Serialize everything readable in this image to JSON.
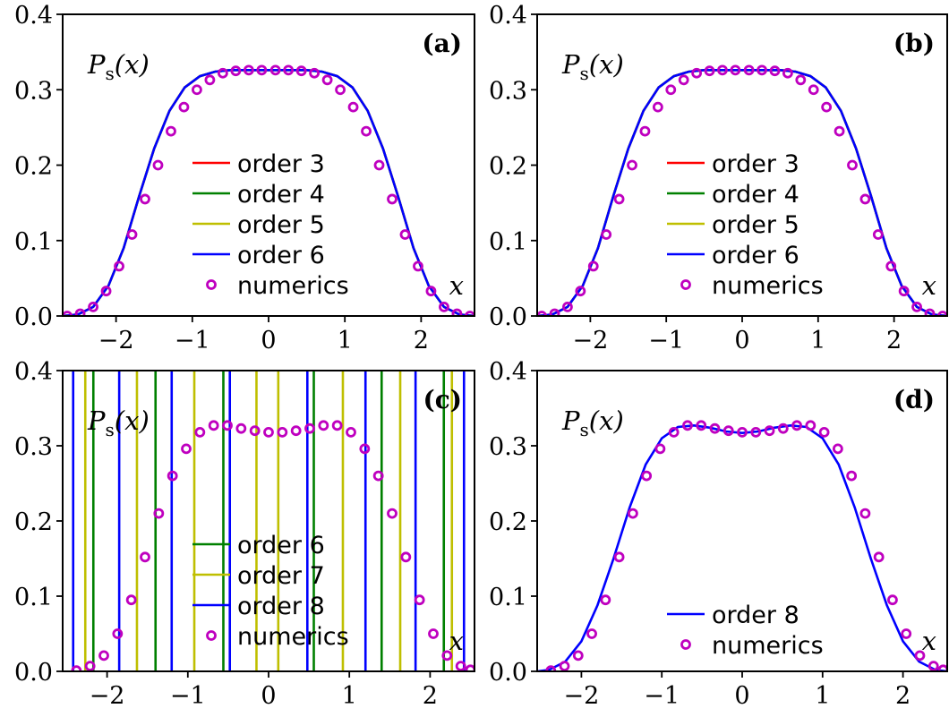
{
  "chart_data": [
    {
      "type": "line",
      "panel": "(a)",
      "ylabel": "P_s(x)",
      "xlabel": "x",
      "xlim": [
        -2.7,
        2.7
      ],
      "ylim": [
        0,
        0.4
      ],
      "xticks": [
        -2,
        -1,
        0,
        1,
        2
      ],
      "xtick_labels": [
        "−2",
        "−1",
        "0",
        "1",
        "2"
      ],
      "yticks": [
        0.0,
        0.1,
        0.2,
        0.3,
        0.4
      ],
      "ytick_labels": [
        "0.0",
        "0.1",
        "0.2",
        "0.3",
        "0.4"
      ],
      "legend_position": "center",
      "series": [
        {
          "name": "order 3",
          "kind": "line",
          "color": "#ff0000",
          "x": [
            -2.7,
            -2.5,
            -2.3,
            -2.1,
            -1.9,
            -1.7,
            -1.5,
            -1.3,
            -1.1,
            -0.9,
            -0.7,
            -0.5,
            -0.3,
            -0.1,
            0.1,
            0.3,
            0.5,
            0.7,
            0.9,
            1.1,
            1.3,
            1.5,
            1.7,
            1.9,
            2.1,
            2.3,
            2.5,
            2.7
          ],
          "y": [
            0.0,
            0.002,
            0.012,
            0.04,
            0.09,
            0.158,
            0.222,
            0.272,
            0.303,
            0.318,
            0.324,
            0.326,
            0.326,
            0.326,
            0.326,
            0.326,
            0.326,
            0.324,
            0.318,
            0.303,
            0.272,
            0.222,
            0.158,
            0.09,
            0.04,
            0.012,
            0.002,
            0.0
          ]
        },
        {
          "name": "order 4",
          "kind": "line",
          "color": "#008000",
          "x": [
            -2.7,
            -2.5,
            -2.3,
            -2.1,
            -1.9,
            -1.7,
            -1.5,
            -1.3,
            -1.1,
            -0.9,
            -0.7,
            -0.5,
            -0.3,
            -0.1,
            0.1,
            0.3,
            0.5,
            0.7,
            0.9,
            1.1,
            1.3,
            1.5,
            1.7,
            1.9,
            2.1,
            2.3,
            2.5,
            2.7
          ],
          "y": [
            0.0,
            0.002,
            0.012,
            0.04,
            0.09,
            0.158,
            0.222,
            0.272,
            0.303,
            0.318,
            0.324,
            0.326,
            0.326,
            0.326,
            0.326,
            0.326,
            0.326,
            0.324,
            0.318,
            0.303,
            0.272,
            0.222,
            0.158,
            0.09,
            0.04,
            0.012,
            0.002,
            0.0
          ]
        },
        {
          "name": "order 5",
          "kind": "line",
          "color": "#bfbf00",
          "x": [
            -2.7,
            -2.5,
            -2.3,
            -2.1,
            -1.9,
            -1.7,
            -1.5,
            -1.3,
            -1.1,
            -0.9,
            -0.7,
            -0.5,
            -0.3,
            -0.1,
            0.1,
            0.3,
            0.5,
            0.7,
            0.9,
            1.1,
            1.3,
            1.5,
            1.7,
            1.9,
            2.1,
            2.3,
            2.5,
            2.7
          ],
          "y": [
            0.0,
            0.002,
            0.012,
            0.04,
            0.09,
            0.158,
            0.222,
            0.272,
            0.303,
            0.318,
            0.324,
            0.326,
            0.326,
            0.326,
            0.326,
            0.326,
            0.326,
            0.324,
            0.318,
            0.303,
            0.272,
            0.222,
            0.158,
            0.09,
            0.04,
            0.012,
            0.002,
            0.0
          ]
        },
        {
          "name": "order 6",
          "kind": "line",
          "color": "#0000ff",
          "x": [
            -2.7,
            -2.5,
            -2.3,
            -2.1,
            -1.9,
            -1.7,
            -1.5,
            -1.3,
            -1.1,
            -0.9,
            -0.7,
            -0.5,
            -0.3,
            -0.1,
            0.1,
            0.3,
            0.5,
            0.7,
            0.9,
            1.1,
            1.3,
            1.5,
            1.7,
            1.9,
            2.1,
            2.3,
            2.5,
            2.7
          ],
          "y": [
            0.0,
            0.002,
            0.012,
            0.04,
            0.09,
            0.158,
            0.222,
            0.272,
            0.303,
            0.318,
            0.324,
            0.326,
            0.326,
            0.326,
            0.326,
            0.326,
            0.326,
            0.324,
            0.318,
            0.303,
            0.272,
            0.222,
            0.158,
            0.09,
            0.04,
            0.012,
            0.002,
            0.0
          ]
        },
        {
          "name": "numerics",
          "kind": "markers",
          "color": "#bf00bf",
          "x": [
            -2.64,
            -2.47,
            -2.3,
            -2.13,
            -1.96,
            -1.79,
            -1.62,
            -1.45,
            -1.28,
            -1.11,
            -0.94,
            -0.77,
            -0.6,
            -0.43,
            -0.26,
            -0.09,
            0.09,
            0.26,
            0.43,
            0.6,
            0.77,
            0.94,
            1.11,
            1.28,
            1.45,
            1.62,
            1.79,
            1.96,
            2.13,
            2.3,
            2.47,
            2.64
          ],
          "y": [
            0.0,
            0.003,
            0.012,
            0.033,
            0.066,
            0.108,
            0.155,
            0.2,
            0.245,
            0.277,
            0.3,
            0.313,
            0.322,
            0.325,
            0.326,
            0.326,
            0.326,
            0.326,
            0.325,
            0.322,
            0.313,
            0.3,
            0.277,
            0.245,
            0.2,
            0.155,
            0.108,
            0.066,
            0.033,
            0.012,
            0.003,
            0.0
          ]
        }
      ]
    },
    {
      "type": "line",
      "panel": "(b)",
      "ylabel": "P_s(x)",
      "xlabel": "x",
      "xlim": [
        -2.7,
        2.7
      ],
      "ylim": [
        0,
        0.4
      ],
      "xticks": [
        -2,
        -1,
        0,
        1,
        2
      ],
      "xtick_labels": [
        "−2",
        "−1",
        "0",
        "1",
        "2"
      ],
      "yticks": [
        0.0,
        0.1,
        0.2,
        0.3,
        0.4
      ],
      "ytick_labels": [
        "0.0",
        "0.1",
        "0.2",
        "0.3",
        "0.4"
      ],
      "legend_position": "center",
      "series": [
        {
          "name": "order 3",
          "kind": "line",
          "color": "#ff0000",
          "x": [
            -2.7,
            -2.5,
            -2.3,
            -2.1,
            -1.9,
            -1.7,
            -1.5,
            -1.3,
            -1.1,
            -0.9,
            -0.7,
            -0.5,
            -0.3,
            -0.1,
            0.1,
            0.3,
            0.5,
            0.7,
            0.9,
            1.1,
            1.3,
            1.5,
            1.7,
            1.9,
            2.1,
            2.3,
            2.5,
            2.7
          ],
          "y": [
            0.0,
            0.002,
            0.012,
            0.04,
            0.09,
            0.158,
            0.222,
            0.272,
            0.303,
            0.318,
            0.324,
            0.326,
            0.326,
            0.326,
            0.326,
            0.326,
            0.326,
            0.324,
            0.318,
            0.303,
            0.272,
            0.222,
            0.158,
            0.09,
            0.04,
            0.012,
            0.002,
            0.0
          ]
        },
        {
          "name": "order 4",
          "kind": "line",
          "color": "#008000",
          "x": [
            -2.7,
            -2.5,
            -2.3,
            -2.1,
            -1.9,
            -1.7,
            -1.5,
            -1.3,
            -1.1,
            -0.9,
            -0.7,
            -0.5,
            -0.3,
            -0.1,
            0.1,
            0.3,
            0.5,
            0.7,
            0.9,
            1.1,
            1.3,
            1.5,
            1.7,
            1.9,
            2.1,
            2.3,
            2.5,
            2.7
          ],
          "y": [
            0.0,
            0.002,
            0.012,
            0.04,
            0.09,
            0.158,
            0.222,
            0.272,
            0.303,
            0.318,
            0.324,
            0.326,
            0.326,
            0.326,
            0.326,
            0.326,
            0.326,
            0.324,
            0.318,
            0.303,
            0.272,
            0.222,
            0.158,
            0.09,
            0.04,
            0.012,
            0.002,
            0.0
          ]
        },
        {
          "name": "order 5",
          "kind": "line",
          "color": "#bfbf00",
          "x": [
            -2.7,
            -2.5,
            -2.3,
            -2.1,
            -1.9,
            -1.7,
            -1.5,
            -1.3,
            -1.1,
            -0.9,
            -0.7,
            -0.5,
            -0.3,
            -0.1,
            0.1,
            0.3,
            0.5,
            0.7,
            0.9,
            1.1,
            1.3,
            1.5,
            1.7,
            1.9,
            2.1,
            2.3,
            2.5,
            2.7
          ],
          "y": [
            0.0,
            0.002,
            0.012,
            0.04,
            0.09,
            0.158,
            0.222,
            0.272,
            0.303,
            0.318,
            0.324,
            0.326,
            0.326,
            0.326,
            0.326,
            0.326,
            0.326,
            0.324,
            0.318,
            0.303,
            0.272,
            0.222,
            0.158,
            0.09,
            0.04,
            0.012,
            0.002,
            0.0
          ]
        },
        {
          "name": "order 6",
          "kind": "line",
          "color": "#0000ff",
          "x": [
            -2.7,
            -2.5,
            -2.3,
            -2.1,
            -1.9,
            -1.7,
            -1.5,
            -1.3,
            -1.1,
            -0.9,
            -0.7,
            -0.5,
            -0.3,
            -0.1,
            0.1,
            0.3,
            0.5,
            0.7,
            0.9,
            1.1,
            1.3,
            1.5,
            1.7,
            1.9,
            2.1,
            2.3,
            2.5,
            2.7
          ],
          "y": [
            0.0,
            0.002,
            0.012,
            0.04,
            0.09,
            0.158,
            0.222,
            0.272,
            0.303,
            0.318,
            0.324,
            0.326,
            0.326,
            0.326,
            0.326,
            0.326,
            0.326,
            0.324,
            0.318,
            0.303,
            0.272,
            0.222,
            0.158,
            0.09,
            0.04,
            0.012,
            0.002,
            0.0
          ]
        },
        {
          "name": "numerics",
          "kind": "markers",
          "color": "#bf00bf",
          "x": [
            -2.64,
            -2.47,
            -2.3,
            -2.13,
            -1.96,
            -1.79,
            -1.62,
            -1.45,
            -1.28,
            -1.11,
            -0.94,
            -0.77,
            -0.6,
            -0.43,
            -0.26,
            -0.09,
            0.09,
            0.26,
            0.43,
            0.6,
            0.77,
            0.94,
            1.11,
            1.28,
            1.45,
            1.62,
            1.79,
            1.96,
            2.13,
            2.3,
            2.47,
            2.64
          ],
          "y": [
            0.0,
            0.003,
            0.012,
            0.033,
            0.066,
            0.108,
            0.155,
            0.2,
            0.245,
            0.277,
            0.3,
            0.313,
            0.322,
            0.325,
            0.326,
            0.326,
            0.326,
            0.326,
            0.325,
            0.322,
            0.313,
            0.3,
            0.277,
            0.245,
            0.2,
            0.155,
            0.108,
            0.066,
            0.033,
            0.012,
            0.003,
            0.0
          ]
        }
      ]
    },
    {
      "type": "line",
      "panel": "(c)",
      "ylabel": "P_s(x)",
      "xlabel": "x",
      "xlim": [
        -2.55,
        2.55
      ],
      "ylim": [
        0,
        0.4
      ],
      "xticks": [
        -2,
        -1,
        0,
        1,
        2
      ],
      "xtick_labels": [
        "−2",
        "−1",
        "0",
        "1",
        "2"
      ],
      "yticks": [
        0.0,
        0.1,
        0.2,
        0.3,
        0.4
      ],
      "ytick_labels": [
        "0.0",
        "0.1",
        "0.2",
        "0.3",
        "0.4"
      ],
      "legend_position": "lower center",
      "note_vertical_lines": "orders 6-8 diverge; drawn as vertical lines spanning the plot",
      "series": [
        {
          "name": "order 6",
          "kind": "vlines",
          "color": "#008000",
          "x": [
            -2.17,
            -1.4,
            -0.56,
            0.56,
            1.4,
            2.17
          ]
        },
        {
          "name": "order 7",
          "kind": "vlines",
          "color": "#bfbf00",
          "x": [
            -2.27,
            -1.63,
            -0.92,
            -0.15,
            0.12,
            0.92,
            1.63,
            2.27
          ]
        },
        {
          "name": "order 8",
          "kind": "vlines",
          "color": "#0000ff",
          "x": [
            -2.42,
            -1.85,
            -1.2,
            -0.48,
            0.48,
            1.2,
            1.82,
            2.42
          ]
        },
        {
          "name": "numerics",
          "kind": "markers",
          "color": "#bf00bf",
          "x": [
            -2.38,
            -2.21,
            -2.04,
            -1.87,
            -1.7,
            -1.53,
            -1.36,
            -1.19,
            -1.02,
            -0.85,
            -0.68,
            -0.51,
            -0.34,
            -0.17,
            0.0,
            0.17,
            0.34,
            0.51,
            0.68,
            0.85,
            1.02,
            1.19,
            1.36,
            1.53,
            1.7,
            1.87,
            2.04,
            2.21,
            2.38,
            2.5
          ],
          "y": [
            0.001,
            0.007,
            0.021,
            0.05,
            0.095,
            0.152,
            0.21,
            0.26,
            0.296,
            0.318,
            0.327,
            0.327,
            0.323,
            0.32,
            0.318,
            0.318,
            0.32,
            0.323,
            0.327,
            0.327,
            0.318,
            0.296,
            0.26,
            0.21,
            0.152,
            0.095,
            0.05,
            0.021,
            0.007,
            0.002
          ]
        }
      ]
    },
    {
      "type": "line",
      "panel": "(d)",
      "ylabel": "P_s(x)",
      "xlabel": "x",
      "xlim": [
        -2.55,
        2.55
      ],
      "ylim": [
        0,
        0.4
      ],
      "xticks": [
        -2,
        -1,
        0,
        1,
        2
      ],
      "xtick_labels": [
        "−2",
        "−1",
        "0",
        "1",
        "2"
      ],
      "yticks": [
        0.0,
        0.1,
        0.2,
        0.3,
        0.4
      ],
      "ytick_labels": [
        "0.0",
        "0.1",
        "0.2",
        "0.3",
        "0.4"
      ],
      "legend_position": "lower center",
      "series": [
        {
          "name": "order 8",
          "kind": "line",
          "color": "#0000ff",
          "x": [
            -2.55,
            -2.4,
            -2.2,
            -2.0,
            -1.8,
            -1.6,
            -1.4,
            -1.2,
            -1.0,
            -0.8,
            -0.6,
            -0.4,
            -0.2,
            0.0,
            0.2,
            0.4,
            0.6,
            0.8,
            1.0,
            1.2,
            1.4,
            1.6,
            1.8,
            2.0,
            2.2,
            2.4,
            2.55
          ],
          "y": [
            0.0,
            0.002,
            0.013,
            0.04,
            0.088,
            0.15,
            0.218,
            0.275,
            0.31,
            0.325,
            0.327,
            0.324,
            0.319,
            0.317,
            0.319,
            0.324,
            0.327,
            0.325,
            0.31,
            0.275,
            0.218,
            0.15,
            0.088,
            0.04,
            0.013,
            0.002,
            0.0
          ]
        },
        {
          "name": "numerics",
          "kind": "markers",
          "color": "#bf00bf",
          "x": [
            -2.38,
            -2.21,
            -2.04,
            -1.87,
            -1.7,
            -1.53,
            -1.36,
            -1.19,
            -1.02,
            -0.85,
            -0.68,
            -0.51,
            -0.34,
            -0.17,
            0.0,
            0.17,
            0.34,
            0.51,
            0.68,
            0.85,
            1.02,
            1.19,
            1.36,
            1.53,
            1.7,
            1.87,
            2.04,
            2.21,
            2.38,
            2.5
          ],
          "y": [
            0.001,
            0.007,
            0.021,
            0.05,
            0.095,
            0.152,
            0.21,
            0.26,
            0.296,
            0.318,
            0.327,
            0.327,
            0.323,
            0.32,
            0.318,
            0.318,
            0.32,
            0.323,
            0.327,
            0.327,
            0.318,
            0.296,
            0.26,
            0.21,
            0.152,
            0.095,
            0.05,
            0.021,
            0.007,
            0.002
          ]
        }
      ]
    }
  ]
}
